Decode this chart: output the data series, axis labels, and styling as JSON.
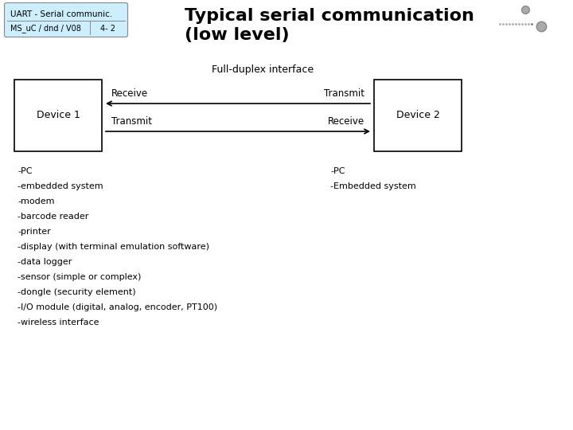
{
  "title_line1": "Typical serial communication",
  "title_line2": "(low level)",
  "header_label": "UART - Serial communic.",
  "header_sub_left": "MS_uC / dnd / V08",
  "header_sub_right": "4- 2",
  "full_duplex_label": "Full-duplex interface",
  "device1_label": "Device 1",
  "device2_label": "Device 2",
  "receive_label_top": "Receive",
  "transmit_label_top": "Transmit",
  "transmit_label_bottom": "Transmit",
  "receive_label_bottom": "Receive",
  "left_list": [
    "-PC",
    "-embedded system",
    "-modem",
    "-barcode reader",
    "-printer",
    "-display (with terminal emulation software)",
    "-data logger",
    "-sensor (simple or complex)",
    "-dongle (security element)",
    "-I/O module (digital, analog, encoder, PT100)",
    "-wireless interface"
  ],
  "right_list": [
    "-PC",
    "-Embedded system"
  ],
  "bg_color": "#ffffff",
  "header_bg": "#cceeff",
  "text_color": "#000000",
  "title_fontsize": 16,
  "body_fontsize": 8,
  "header_fontsize": 7.5,
  "device_fontsize": 9,
  "arrow_label_fontsize": 8.5,
  "full_duplex_fontsize": 9
}
